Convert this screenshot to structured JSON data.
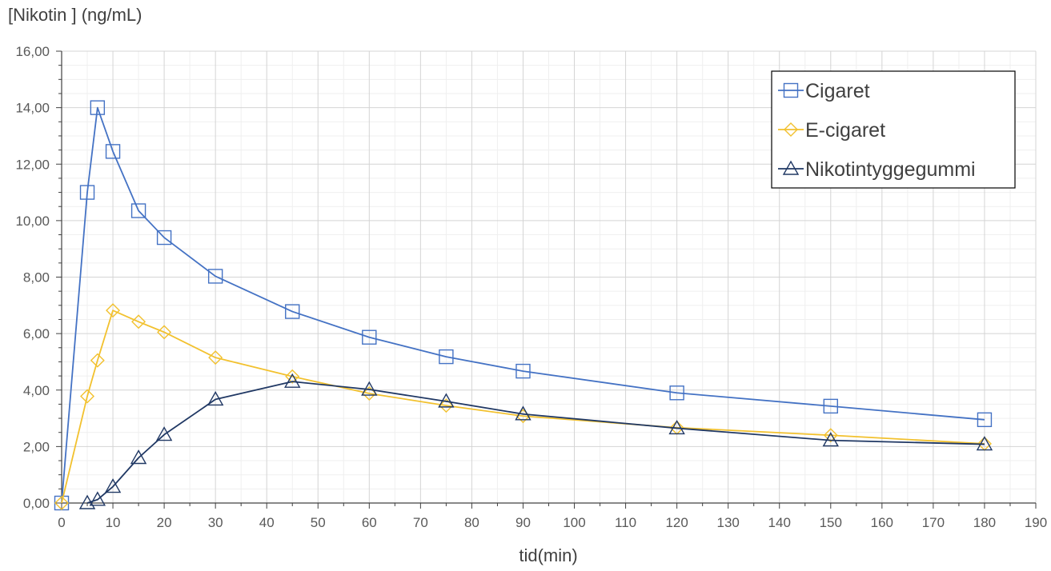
{
  "chart_data": {
    "type": "line",
    "title": "",
    "xlabel": "tid(min)",
    "ylabel": "[Nikotin ] (ng/mL)",
    "xlim": [
      0,
      190
    ],
    "ylim": [
      0,
      16
    ],
    "x_ticks": [
      0,
      10,
      20,
      30,
      40,
      50,
      60,
      70,
      80,
      90,
      100,
      110,
      120,
      130,
      140,
      150,
      160,
      170,
      180,
      190
    ],
    "x_tick_labels": [
      "0",
      "10",
      "20",
      "30",
      "40",
      "50",
      "60",
      "70",
      "80",
      "90",
      "100",
      "110",
      "120",
      "130",
      "140",
      "150",
      "160",
      "170",
      "180",
      "190"
    ],
    "y_ticks": [
      0,
      2,
      4,
      6,
      8,
      10,
      12,
      14,
      16
    ],
    "y_tick_labels": [
      "0,00",
      "2,00",
      "4,00",
      "6,00",
      "8,00",
      "10,00",
      "12,00",
      "14,00",
      "16,00"
    ],
    "grid": true,
    "minor_grid": true,
    "legend_position": "top-right",
    "series": [
      {
        "name": "Cigaret",
        "color": "#4472C4",
        "marker": "square",
        "x": [
          0,
          5,
          7,
          10,
          15,
          20,
          30,
          45,
          60,
          75,
          90,
          120,
          150,
          180
        ],
        "y": [
          0,
          11.0,
          14.0,
          12.45,
          10.35,
          9.4,
          8.03,
          6.78,
          5.87,
          5.18,
          4.67,
          3.9,
          3.43,
          2.95
        ]
      },
      {
        "name": "E-cigaret",
        "color": "#F2C12E",
        "marker": "diamond",
        "x": [
          0,
          5,
          7,
          10,
          15,
          20,
          30,
          45,
          60,
          75,
          90,
          120,
          150,
          180
        ],
        "y": [
          0,
          3.78,
          5.05,
          6.82,
          6.42,
          6.05,
          5.15,
          4.48,
          3.88,
          3.45,
          3.08,
          2.67,
          2.4,
          2.1
        ]
      },
      {
        "name": "Nikotintyggegummi",
        "color": "#203864",
        "marker": "triangle",
        "x": [
          5,
          7,
          10,
          15,
          20,
          30,
          45,
          60,
          75,
          90,
          120,
          150,
          180
        ],
        "y": [
          0,
          0.12,
          0.58,
          1.6,
          2.42,
          3.67,
          4.3,
          4.02,
          3.6,
          3.15,
          2.65,
          2.22,
          2.08
        ]
      }
    ]
  }
}
